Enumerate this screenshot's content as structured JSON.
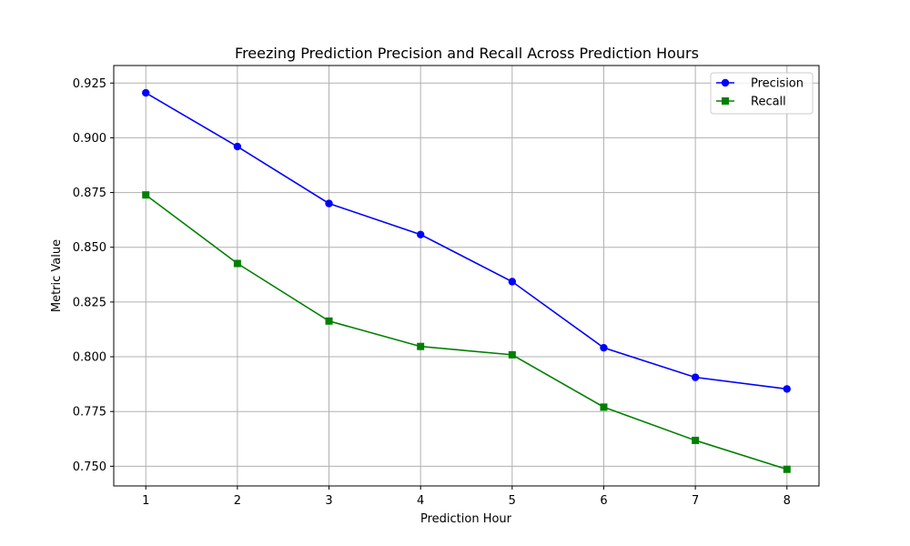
{
  "chart_data": {
    "type": "line",
    "title": "Freezing Prediction Precision and Recall Across Prediction Hours",
    "xlabel": "Prediction Hour",
    "ylabel": "Metric Value",
    "x": [
      1,
      2,
      3,
      4,
      5,
      6,
      7,
      8
    ],
    "xlim": [
      0.65,
      8.35
    ],
    "ylim": [
      0.741,
      0.933
    ],
    "xticks": [
      1,
      2,
      3,
      4,
      5,
      6,
      7,
      8
    ],
    "yticks": [
      0.75,
      0.775,
      0.8,
      0.825,
      0.85,
      0.875,
      0.9,
      0.925
    ],
    "ytick_labels": [
      "0.750",
      "0.775",
      "0.800",
      "0.825",
      "0.850",
      "0.875",
      "0.900",
      "0.925"
    ],
    "grid": true,
    "legend_position": "top-right",
    "series": [
      {
        "name": "Precision",
        "color": "#0000ff",
        "marker": "circle",
        "values": [
          0.9205,
          0.896,
          0.87,
          0.8558,
          0.8343,
          0.8041,
          0.7906,
          0.7853
        ]
      },
      {
        "name": "Recall",
        "color": "#008000",
        "marker": "square",
        "values": [
          0.8739,
          0.8426,
          0.8163,
          0.8047,
          0.8009,
          0.777,
          0.7618,
          0.7486
        ]
      }
    ]
  }
}
